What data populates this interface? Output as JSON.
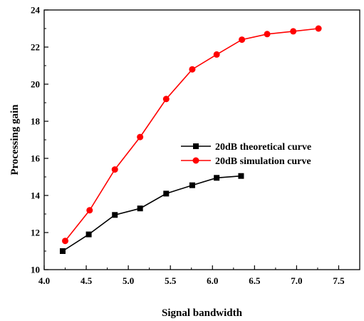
{
  "chart_data": {
    "type": "line",
    "title": "",
    "xlabel": "Signal bandwidth",
    "ylabel": "Processing gain",
    "xlim": [
      4.0,
      7.75
    ],
    "ylim": [
      10,
      24
    ],
    "x_ticks": [
      "4.0",
      "4.5",
      "5.0",
      "5.5",
      "6.0",
      "6.5",
      "7.0",
      "7.5"
    ],
    "y_ticks": [
      "10",
      "12",
      "14",
      "16",
      "18",
      "20",
      "22",
      "24"
    ],
    "grid": false,
    "legend_position": "center-right",
    "series": [
      {
        "name": "20dB theoretical curve",
        "color": "#000000",
        "marker": "square",
        "x": [
          4.22,
          4.53,
          4.84,
          5.14,
          5.45,
          5.76,
          6.05,
          6.34
        ],
        "y": [
          11.0,
          11.9,
          12.95,
          13.3,
          14.1,
          14.55,
          14.95,
          15.05
        ]
      },
      {
        "name": "20dB simulation curve",
        "color": "#ff0000",
        "marker": "circle",
        "x": [
          4.25,
          4.54,
          4.84,
          5.14,
          5.45,
          5.76,
          6.05,
          6.35,
          6.65,
          6.96,
          7.26
        ],
        "y": [
          11.55,
          13.2,
          15.4,
          17.15,
          19.2,
          20.8,
          21.6,
          22.4,
          22.7,
          22.85,
          23.0
        ]
      }
    ]
  }
}
